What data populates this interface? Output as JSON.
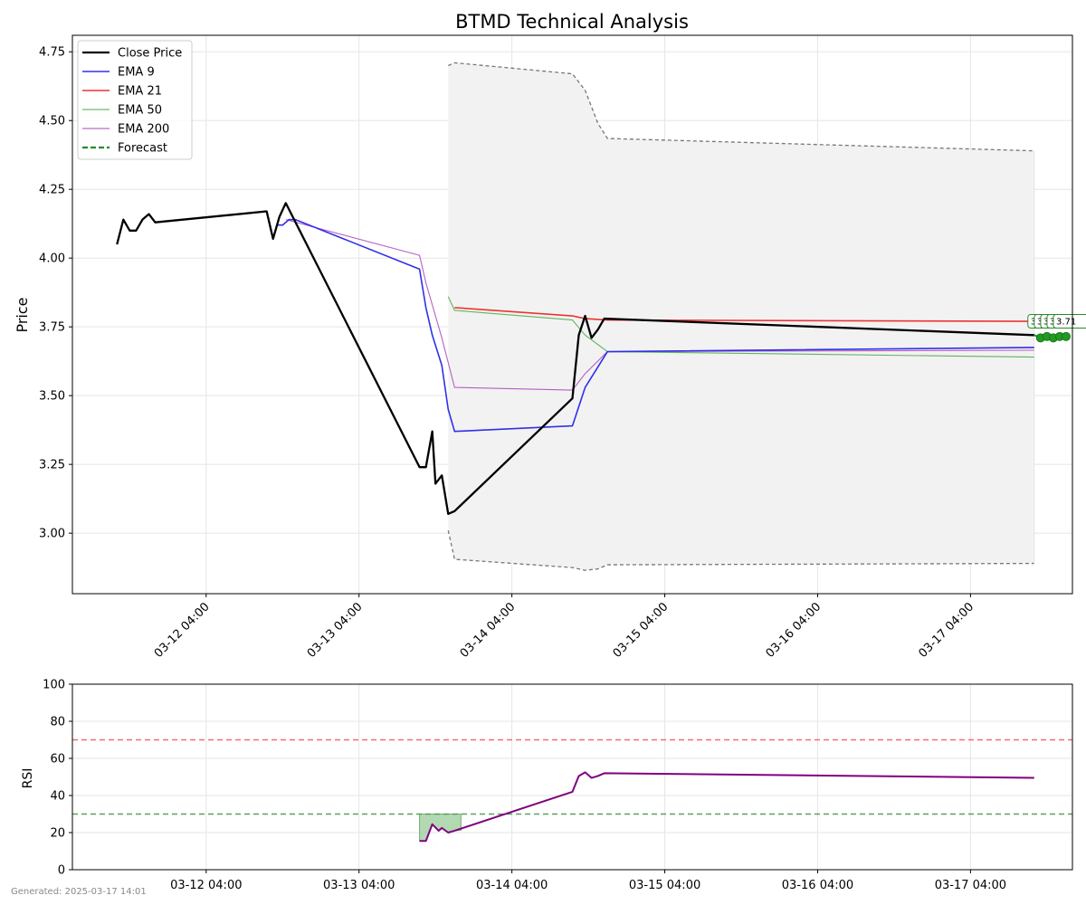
{
  "footer": {
    "generated": "Generated: 2025-03-17 14:01"
  },
  "chart_data": [
    {
      "type": "line",
      "title": "BTMD Technical Analysis",
      "xlabel": "",
      "ylabel": "Price",
      "ylim": [
        2.78,
        4.81
      ],
      "xlim": [
        "2025-03-11 07:00",
        "2025-03-17 20:00"
      ],
      "y_ticks": [
        3.0,
        3.25,
        3.5,
        3.75,
        4.0,
        4.25,
        4.5,
        4.75
      ],
      "x_tick_labels": [
        "03-12 04:00",
        "03-13 04:00",
        "03-14 04:00",
        "03-15 04:00",
        "03-16 04:00",
        "03-17 04:00"
      ],
      "grid": true,
      "legend": "upper-left",
      "series": [
        {
          "name": "Close Price",
          "color": "#000000",
          "style": "solid",
          "x": [
            "2025-03-11 14:00",
            "2025-03-11 15:00",
            "2025-03-11 16:00",
            "2025-03-11 17:00",
            "2025-03-11 18:00",
            "2025-03-11 19:00",
            "2025-03-11 20:00",
            "2025-03-12 13:30",
            "2025-03-12 14:30",
            "2025-03-12 15:30",
            "2025-03-12 16:30",
            "2025-03-13 13:30",
            "2025-03-13 14:30",
            "2025-03-13 15:30",
            "2025-03-13 16:00",
            "2025-03-13 17:00",
            "2025-03-13 18:00",
            "2025-03-13 19:00",
            "2025-03-14 13:30",
            "2025-03-14 14:30",
            "2025-03-14 15:30",
            "2025-03-14 16:30",
            "2025-03-14 17:30",
            "2025-03-14 18:30",
            "2025-03-17 14:00"
          ],
          "y": [
            4.05,
            4.14,
            4.1,
            4.1,
            4.14,
            4.16,
            4.13,
            4.17,
            4.07,
            4.15,
            4.2,
            3.24,
            3.24,
            3.37,
            3.18,
            3.21,
            3.07,
            3.08,
            3.49,
            3.72,
            3.79,
            3.71,
            3.74,
            3.78,
            3.72
          ]
        },
        {
          "name": "EMA 9",
          "color": "#3030e8",
          "style": "solid",
          "x": [
            "2025-03-12 15:00",
            "2025-03-12 16:00",
            "2025-03-12 17:00",
            "2025-03-12 18:00",
            "2025-03-13 13:30",
            "2025-03-13 14:30",
            "2025-03-13 15:30",
            "2025-03-13 17:00",
            "2025-03-13 18:00",
            "2025-03-13 19:00",
            "2025-03-14 13:30",
            "2025-03-14 15:30",
            "2025-03-14 19:00",
            "2025-03-17 14:00"
          ],
          "y": [
            4.12,
            4.12,
            4.14,
            4.14,
            3.96,
            3.82,
            3.72,
            3.61,
            3.45,
            3.37,
            3.39,
            3.53,
            3.66,
            3.675
          ]
        },
        {
          "name": "EMA 21",
          "color": "#ee3333",
          "style": "solid",
          "x": [
            "2025-03-13 19:00",
            "2025-03-14 13:30",
            "2025-03-14 15:30",
            "2025-03-14 19:00",
            "2025-03-17 14:00"
          ],
          "y": [
            3.82,
            3.79,
            3.78,
            3.775,
            3.77
          ]
        },
        {
          "name": "EMA 50",
          "color": "#44aa44",
          "style": "solid",
          "x": [
            "2025-03-13 18:00",
            "2025-03-13 19:00",
            "2025-03-14 13:30",
            "2025-03-14 15:30",
            "2025-03-14 19:00",
            "2025-03-17 14:00"
          ],
          "y": [
            3.86,
            3.81,
            3.775,
            3.72,
            3.66,
            3.64
          ]
        },
        {
          "name": "EMA 200",
          "color": "#aa44bb",
          "style": "solid",
          "x": [
            "2025-03-12 16:30",
            "2025-03-13 13:30",
            "2025-03-13 14:30",
            "2025-03-13 15:30",
            "2025-03-13 17:00",
            "2025-03-13 19:00",
            "2025-03-14 13:30",
            "2025-03-14 15:30",
            "2025-03-14 19:00",
            "2025-03-17 14:00"
          ],
          "y": [
            4.14,
            4.01,
            3.91,
            3.83,
            3.71,
            3.53,
            3.52,
            3.58,
            3.66,
            3.665
          ]
        },
        {
          "name": "Forecast",
          "color": "#2a8a2a",
          "style": "dashed",
          "x": [
            "2025-03-17 14:00",
            "2025-03-17 15:00",
            "2025-03-17 16:00",
            "2025-03-17 17:00",
            "2025-03-17 18:00",
            "2025-03-17 19:00"
          ],
          "y": [
            3.72,
            3.71,
            3.715,
            3.71,
            3.715,
            3.715
          ],
          "marker_labels": [
            "3.71",
            "3.71",
            "3.71",
            "3.71",
            "3.71"
          ]
        }
      ],
      "band": {
        "color": "#f2f2f2",
        "edge_color": "#777777",
        "x": [
          "2025-03-13 18:00",
          "2025-03-13 19:00",
          "2025-03-14 13:30",
          "2025-03-14 15:30",
          "2025-03-14 17:30",
          "2025-03-14 19:00",
          "2025-03-17 14:00"
        ],
        "upper": [
          4.7,
          4.71,
          4.67,
          4.61,
          4.49,
          4.435,
          4.39
        ],
        "lower": [
          3.01,
          2.905,
          2.875,
          2.865,
          2.87,
          2.885,
          2.89
        ]
      }
    },
    {
      "type": "line",
      "title": "",
      "xlabel": "",
      "ylabel": "RSI",
      "ylim": [
        0,
        100
      ],
      "xlim": [
        "2025-03-11 07:00",
        "2025-03-17 20:00"
      ],
      "y_ticks": [
        0,
        20,
        40,
        60,
        80,
        100
      ],
      "x_tick_labels": [
        "03-12 04:00",
        "03-13 04:00",
        "03-14 04:00",
        "03-15 04:00",
        "03-16 04:00",
        "03-17 04:00"
      ],
      "grid": true,
      "reference_lines": [
        {
          "value": 70,
          "color": "#f07070"
        },
        {
          "value": 30,
          "color": "#5aa05a"
        }
      ],
      "oversold_fill": {
        "color": "#99cc99",
        "x": [
          "2025-03-13 13:30",
          "2025-03-13 20:00"
        ]
      },
      "series": [
        {
          "name": "RSI",
          "color": "#800080",
          "style": "solid",
          "x": [
            "2025-03-13 13:30",
            "2025-03-13 14:30",
            "2025-03-13 15:30",
            "2025-03-13 16:30",
            "2025-03-13 17:00",
            "2025-03-13 18:00",
            "2025-03-13 19:00",
            "2025-03-14 13:30",
            "2025-03-14 14:30",
            "2025-03-14 15:30",
            "2025-03-14 16:30",
            "2025-03-14 17:30",
            "2025-03-14 18:30",
            "2025-03-17 14:00"
          ],
          "y": [
            15.5,
            15.5,
            24.5,
            21,
            22.5,
            20,
            21,
            42,
            50.5,
            52.5,
            49.5,
            50.5,
            52,
            49.5
          ]
        }
      ]
    }
  ]
}
